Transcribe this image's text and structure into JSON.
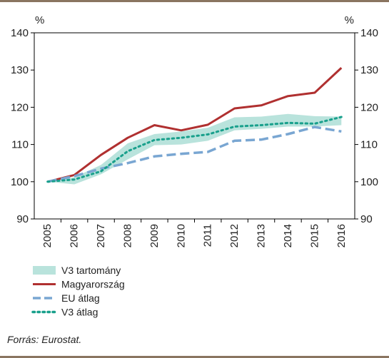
{
  "chart_data": {
    "type": "line",
    "x": [
      "2005",
      "2006",
      "2007",
      "2008",
      "2009",
      "2010",
      "2011",
      "2012",
      "2013",
      "2014",
      "2015",
      "2016"
    ],
    "ylim": [
      90,
      140
    ],
    "yticks": [
      90,
      100,
      110,
      120,
      130,
      140
    ],
    "y_unit_left": "%",
    "y_unit_right": "%",
    "grid": false,
    "band": {
      "name": "V3 tartomány",
      "color": "#b9e3dc",
      "lower": [
        100.0,
        99.3,
        102.0,
        106.0,
        109.8,
        110.0,
        111.0,
        113.8,
        114.2,
        114.8,
        114.8,
        115.2
      ],
      "upper": [
        100.0,
        101.2,
        104.5,
        110.3,
        112.8,
        113.5,
        114.5,
        117.3,
        117.5,
        118.2,
        117.6,
        117.5
      ]
    },
    "series": [
      {
        "name": "Magyarország",
        "color": "#b03030",
        "style": "solid",
        "values": [
          100.0,
          101.8,
          107.2,
          111.8,
          115.2,
          113.8,
          115.3,
          119.7,
          120.5,
          123.0,
          123.9,
          130.6
        ]
      },
      {
        "name": "EU átlag",
        "color": "#79a6d2",
        "style": "dashed",
        "values": [
          100.0,
          101.5,
          103.5,
          105.0,
          106.8,
          107.5,
          108.0,
          111.0,
          111.3,
          112.8,
          114.7,
          113.5
        ]
      },
      {
        "name": "V3 átlag",
        "color": "#19a08c",
        "style": "dotted",
        "values": [
          100.0,
          100.6,
          102.8,
          108.2,
          111.2,
          111.8,
          112.7,
          114.8,
          115.2,
          115.8,
          115.6,
          117.4
        ]
      }
    ],
    "legend_position": "bottom-left"
  },
  "footer": {
    "source": "Forrás: Eurostat."
  }
}
